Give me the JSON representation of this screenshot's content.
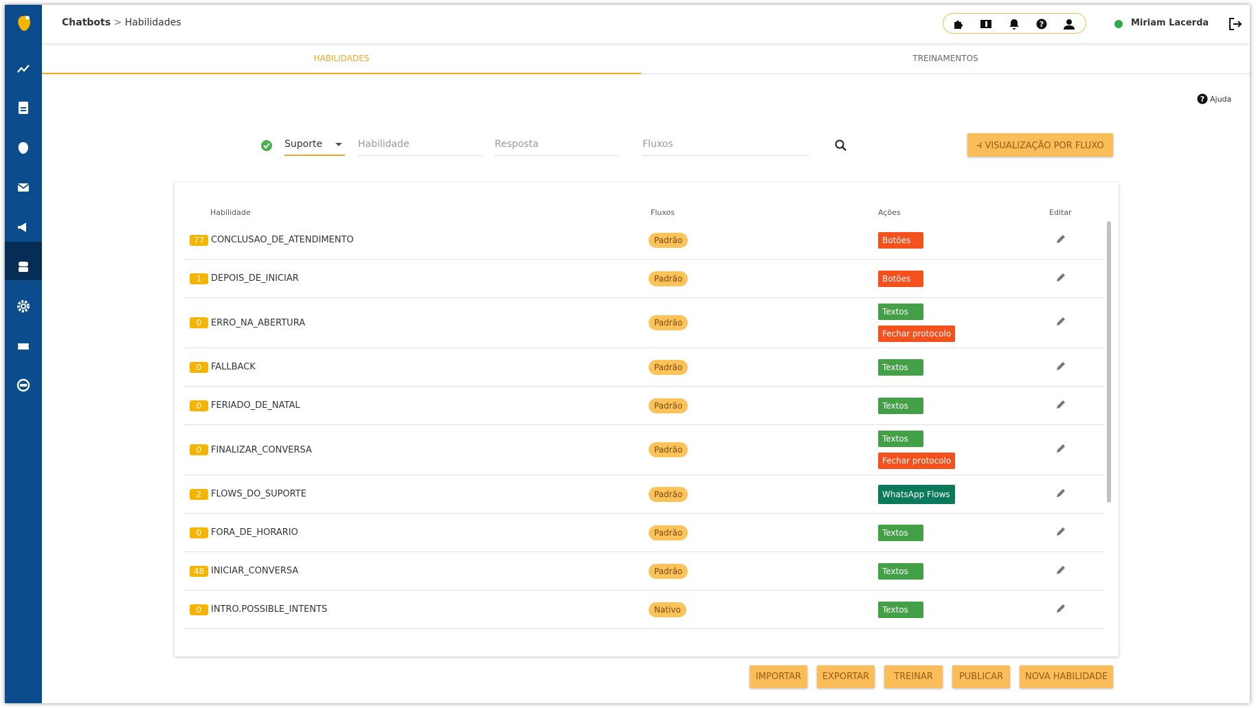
{
  "breadcrumb": {
    "root": "Chatbots",
    "current": "Habilidades"
  },
  "user": {
    "name": "Miriam Lacerda"
  },
  "tabs": [
    "HABILIDADES",
    "TREINAMENTOS"
  ],
  "help": "Ajuda",
  "filters": {
    "bot": "Suporte",
    "skill": "Habilidade",
    "answer": "Resposta",
    "flows": "Fluxos",
    "flow_view": "VISUALIZAÇÃO POR FLUXO"
  },
  "table": {
    "headers": [
      "Habilidade",
      "Fluxos",
      "Ações",
      "Editar"
    ],
    "rows": [
      {
        "count": "77",
        "name": "CONCLUSAO_DE_ATENDIMENTO",
        "flow": "Padrão",
        "actions": [
          {
            "label": "Botões",
            "color": "#f4511e"
          }
        ]
      },
      {
        "count": "1",
        "name": "DEPOIS_DE_INICIAR",
        "flow": "Padrão",
        "actions": [
          {
            "label": "Botões",
            "color": "#f4511e"
          }
        ]
      },
      {
        "count": "0",
        "name": "ERRO_NA_ABERTURA",
        "flow": "Padrão",
        "actions": [
          {
            "label": "Textos",
            "color": "#43a047"
          },
          {
            "label": "Fechar protocolo",
            "color": "#f4511e"
          }
        ]
      },
      {
        "count": "0",
        "name": "FALLBACK",
        "flow": "Padrão",
        "actions": [
          {
            "label": "Textos",
            "color": "#43a047"
          }
        ]
      },
      {
        "count": "0",
        "name": "FERIADO_DE_NATAL",
        "flow": "Padrão",
        "actions": [
          {
            "label": "Textos",
            "color": "#43a047"
          }
        ]
      },
      {
        "count": "0",
        "name": "FINALIZAR_CONVERSA",
        "flow": "Padrão",
        "actions": [
          {
            "label": "Textos",
            "color": "#43a047"
          },
          {
            "label": "Fechar protocolo",
            "color": "#f4511e"
          }
        ]
      },
      {
        "count": "2",
        "name": "FLOWS_DO_SUPORTE",
        "flow": "Padrão",
        "actions": [
          {
            "label": "WhatsApp Flows",
            "color": "#0a7a5a"
          }
        ]
      },
      {
        "count": "0",
        "name": "FORA_DE_HORARIO",
        "flow": "Padrão",
        "actions": [
          {
            "label": "Textos",
            "color": "#43a047"
          }
        ]
      },
      {
        "count": "48",
        "name": "INICIAR_CONVERSA",
        "flow": "Padrão",
        "actions": [
          {
            "label": "Textos",
            "color": "#43a047"
          }
        ]
      },
      {
        "count": "0",
        "name": "INTRO.POSSIBLE_INTENTS",
        "flow": "Nativo",
        "actions": [
          {
            "label": "Textos",
            "color": "#43a047"
          }
        ]
      }
    ]
  },
  "buttons": [
    "IMPORTAR",
    "EXPORTAR",
    "TREINAR",
    "PUBLICAR",
    "NOVA HABILIDADE"
  ]
}
